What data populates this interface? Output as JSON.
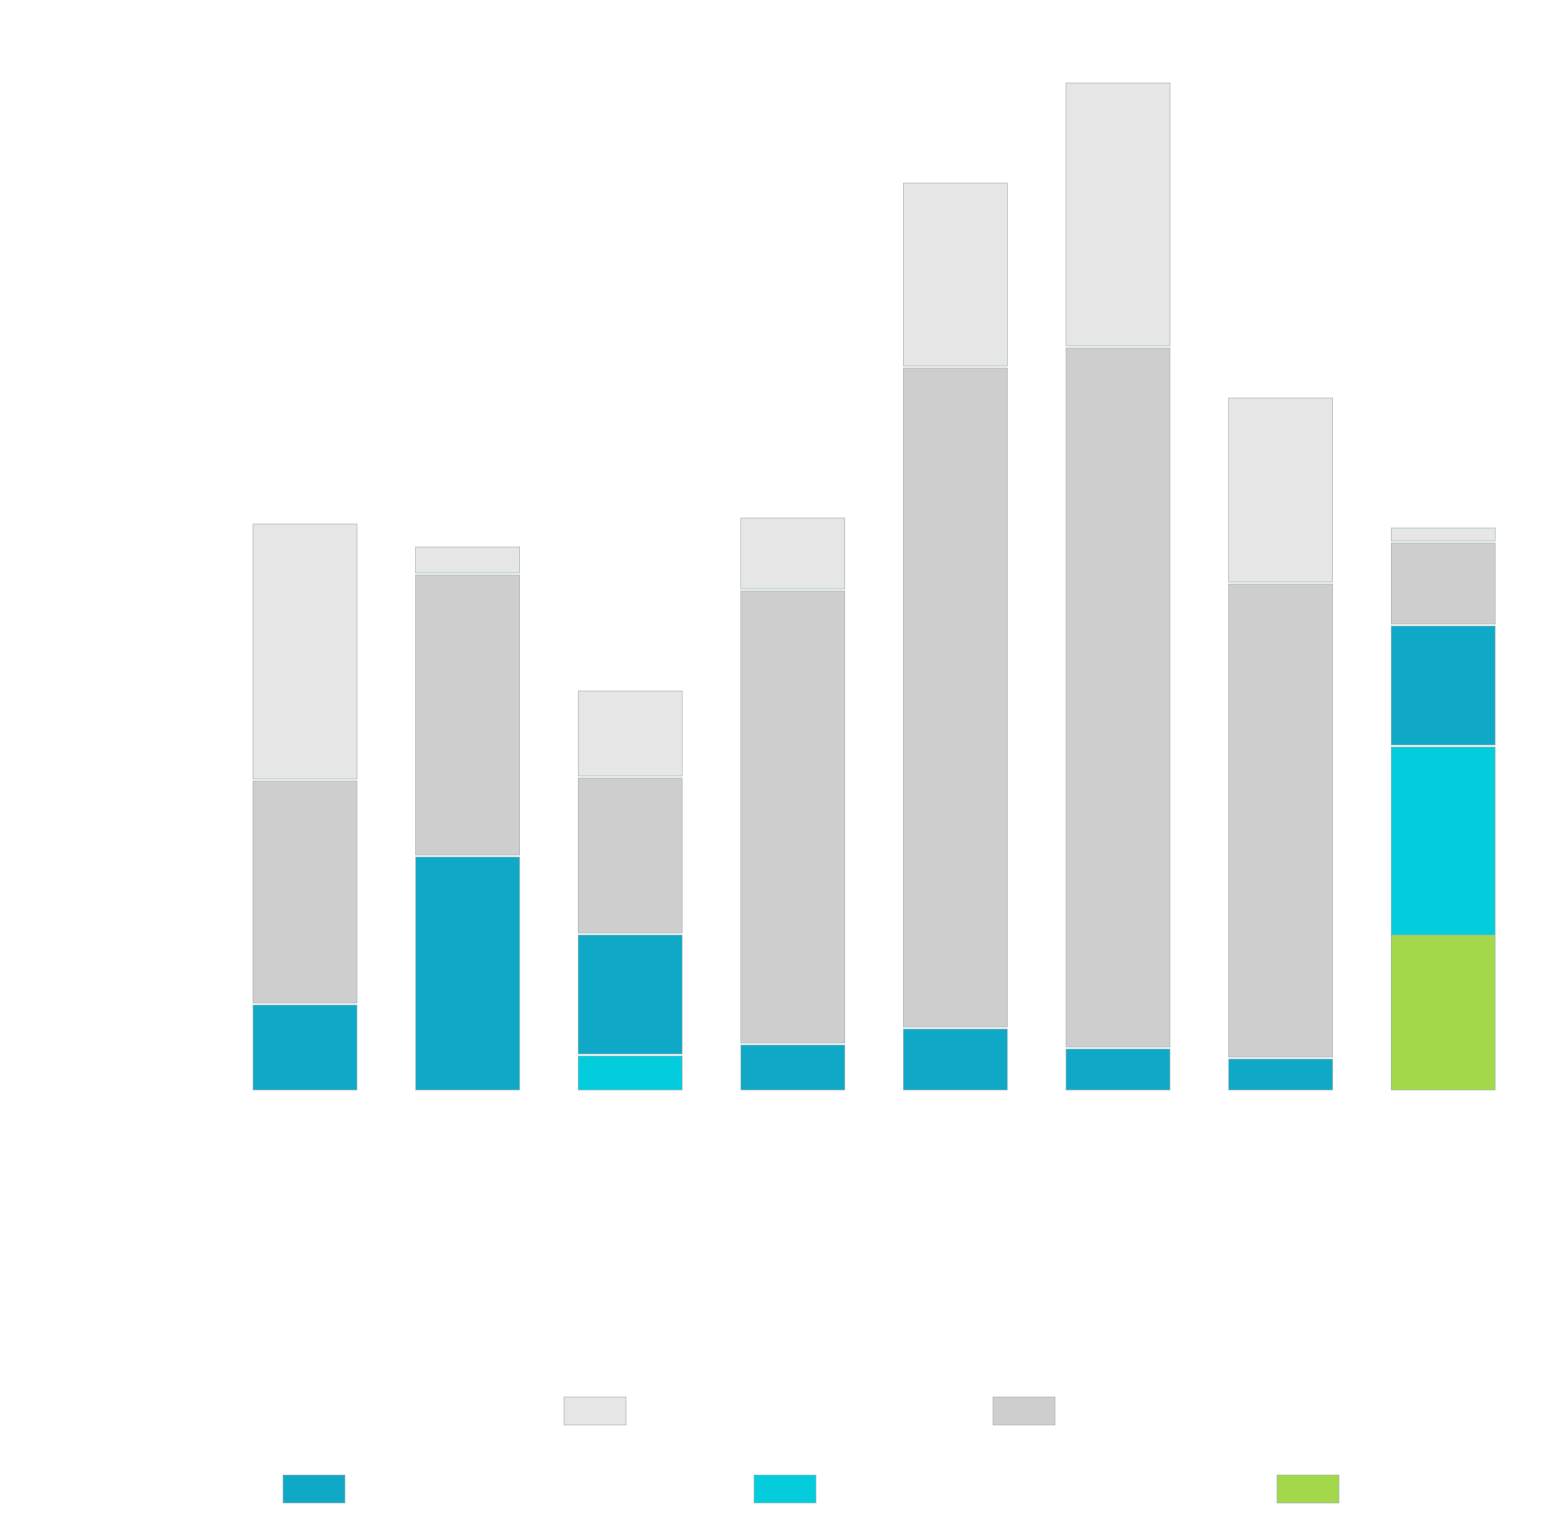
{
  "chart_data": {
    "type": "bar",
    "stacked": true,
    "categories": [
      "",
      "",
      "",
      "",
      "",
      "",
      "",
      ""
    ],
    "ylim": [
      0,
      1000
    ],
    "grid": false,
    "legend_position": "bottom",
    "series": [
      {
        "color": "#a2d84a",
        "values": [
          0,
          0,
          0,
          0,
          0,
          0,
          0,
          155
        ]
      },
      {
        "color": "#03ccdc",
        "values": [
          0,
          0,
          36,
          0,
          0,
          0,
          0,
          190
        ]
      },
      {
        "color": "#0fa8c7",
        "values": [
          87,
          235,
          121,
          47,
          63,
          43,
          33,
          121
        ]
      },
      {
        "color": "#cecece",
        "values": [
          224,
          282,
          157,
          454,
          661,
          701,
          475,
          83
        ]
      },
      {
        "color": "#e6e6e6",
        "values": [
          257,
          28,
          87,
          73,
          185,
          265,
          186,
          15
        ]
      }
    ],
    "legend": [
      {
        "color": "#e6e6e6"
      },
      {
        "color": "#cecece"
      },
      {
        "color": "#0fa8c7"
      },
      {
        "color": "#03ccdc"
      },
      {
        "color": "#a2d84a"
      }
    ]
  }
}
